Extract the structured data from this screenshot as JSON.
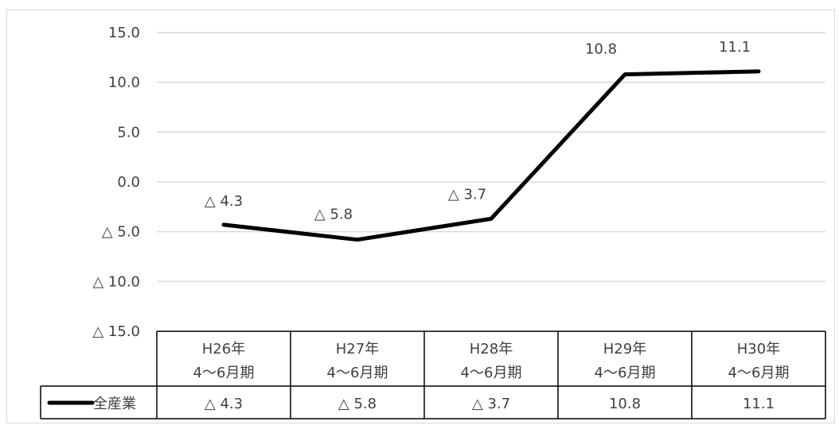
{
  "chart_data": {
    "type": "line",
    "ylim": [
      -15.0,
      15.0
    ],
    "y_ticks": [
      15.0,
      10.0,
      5.0,
      0.0,
      -5.0,
      -10.0,
      -15.0
    ],
    "y_tick_labels": [
      "15.0",
      "10.0",
      "5.0",
      "0.0",
      "△ 5.0",
      "△ 10.0",
      "△ 15.0"
    ],
    "grid": true,
    "categories": [
      [
        "H26年",
        "4～6月期"
      ],
      [
        "H27年",
        "4～6月期"
      ],
      [
        "H28年",
        "4～6月期"
      ],
      [
        "H29年",
        "4～6月期"
      ],
      [
        "H30年",
        "4～6月期"
      ]
    ],
    "series": [
      {
        "name": "全産業",
        "color": "#000000",
        "values": [
          -4.3,
          -5.8,
          -3.7,
          10.8,
          11.1
        ],
        "data_labels": [
          "△ 4.3",
          "△ 5.8",
          "△ 3.7",
          "10.8",
          "11.1"
        ]
      }
    ],
    "data_table": true
  }
}
